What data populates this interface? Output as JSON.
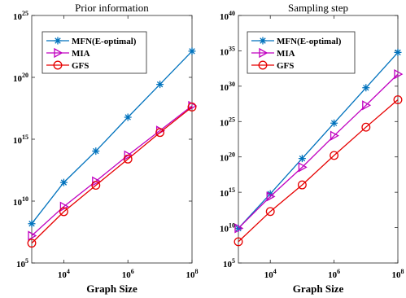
{
  "chart_data": [
    {
      "type": "line",
      "title": "Prior information",
      "xlabel": "Graph Size",
      "ylabel": "",
      "xscale": "log",
      "yscale": "log",
      "xlim": [
        1000,
        100000000
      ],
      "ylim": [
        100000,
        1e+25
      ],
      "xticks": [
        {
          "base": "10",
          "exp": "4",
          "value": 10000
        },
        {
          "base": "10",
          "exp": "6",
          "value": 1000000
        },
        {
          "base": "10",
          "exp": "8",
          "value": 100000000
        }
      ],
      "yticks": [
        {
          "base": "10",
          "exp": "5",
          "value": 100000.0
        },
        {
          "base": "10",
          "exp": "10",
          "value": 10000000000.0
        },
        {
          "base": "10",
          "exp": "15",
          "value": 1000000000000000.0
        },
        {
          "base": "10",
          "exp": "20",
          "value": 1e+20
        },
        {
          "base": "10",
          "exp": "25",
          "value": 1e+25
        }
      ],
      "x": [
        1000,
        10000,
        100000,
        1000000,
        10000000,
        100000000
      ],
      "legend_position": "top-left",
      "series": [
        {
          "name": "MFN(E-optimal)",
          "color": "#0072BD",
          "marker": "asterisk",
          "values": [
            150000000.0,
            320000000000.0,
            110000000000000.0,
            6e+16,
            2.7e+19,
            1.3e+22
          ]
        },
        {
          "name": "MIA",
          "color": "#C000C0",
          "marker": "triangle-right",
          "values": [
            16000000.0,
            3600000000.0,
            400000000000.0,
            50000000000000.0,
            5000000000000000.0,
            5e+17
          ]
        },
        {
          "name": "GFS",
          "color": "#E60000",
          "marker": "circle",
          "values": [
            4000000.0,
            1400000000.0,
            190000000000.0,
            25000000000000.0,
            3500000000000000.0,
            4e+17
          ]
        }
      ]
    },
    {
      "type": "line",
      "title": "Sampling step",
      "xlabel": "Graph Size",
      "ylabel": "",
      "xscale": "log",
      "yscale": "log",
      "xlim": [
        1000,
        100000000
      ],
      "ylim": [
        100000,
        1e+40
      ],
      "xticks": [
        {
          "base": "10",
          "exp": "4",
          "value": 10000
        },
        {
          "base": "10",
          "exp": "6",
          "value": 1000000
        },
        {
          "base": "10",
          "exp": "8",
          "value": 100000000
        }
      ],
      "yticks": [
        {
          "base": "10",
          "exp": "5",
          "value": 100000.0
        },
        {
          "base": "10",
          "exp": "10",
          "value": 10000000000.0
        },
        {
          "base": "10",
          "exp": "15",
          "value": 1000000000000000.0
        },
        {
          "base": "10",
          "exp": "20",
          "value": 1e+20
        },
        {
          "base": "10",
          "exp": "25",
          "value": 1e+25
        },
        {
          "base": "10",
          "exp": "30",
          "value": 1e+30
        },
        {
          "base": "10",
          "exp": "35",
          "value": 1e+35
        },
        {
          "base": "10",
          "exp": "40",
          "value": 1e+40
        }
      ],
      "x": [
        1000,
        10000,
        100000,
        1000000,
        10000000,
        100000000
      ],
      "legend_position": "top-left",
      "series": [
        {
          "name": "MFN(E-optimal)",
          "color": "#0072BD",
          "marker": "asterisk",
          "values": [
            8000000000.0,
            600000000000000.0,
            6e+19,
            6e+24,
            6e+29,
            6e+34
          ]
        },
        {
          "name": "MIA",
          "color": "#C000C0",
          "marker": "triangle-right",
          "values": [
            8000000000.0,
            250000000000000.0,
            3.5e+18,
            1e+23,
            2e+27,
            5e+31
          ]
        },
        {
          "name": "GFS",
          "color": "#E60000",
          "marker": "circle",
          "values": [
            100000000.0,
            1900000000000.0,
            1.1e+16,
            1.6e+20,
            1.6e+24,
            1.2e+28
          ]
        }
      ]
    }
  ]
}
